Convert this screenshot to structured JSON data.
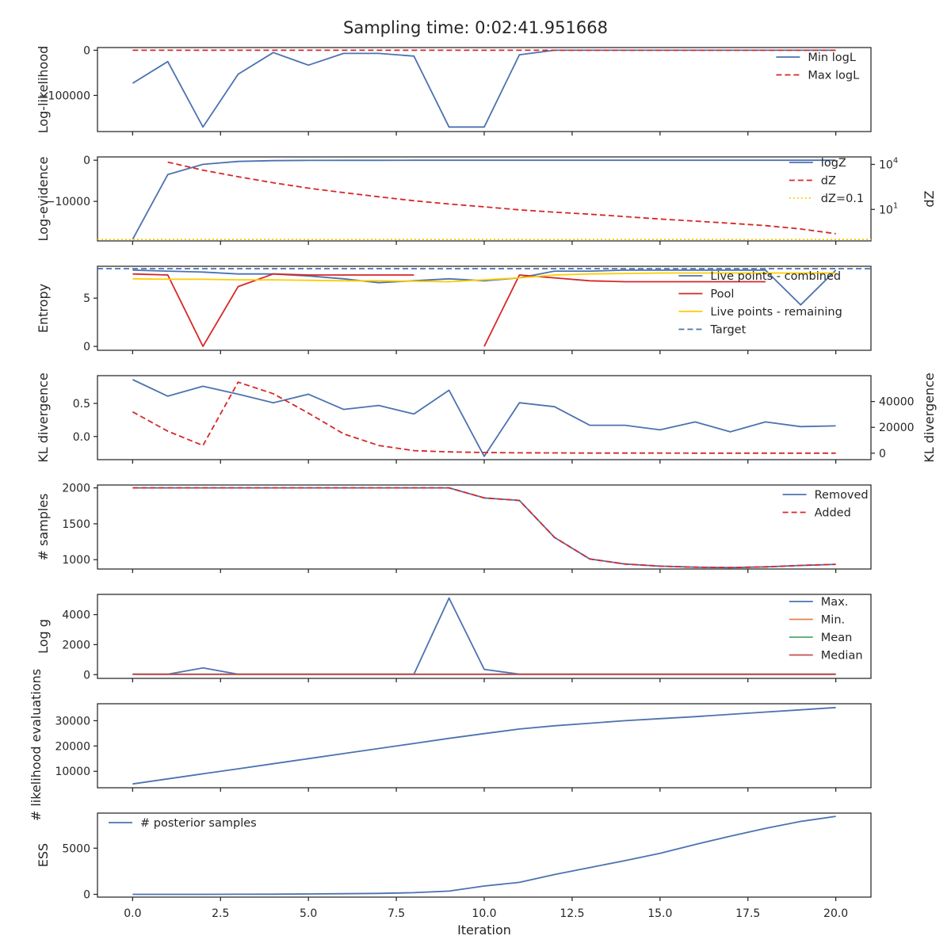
{
  "title": "Sampling time: 0:02:41.951668",
  "xlabel": "Iteration",
  "x_ticks": [
    "0.0",
    "2.5",
    "5.0",
    "7.5",
    "10.0",
    "12.5",
    "15.0",
    "17.5",
    "20.0"
  ],
  "colors": {
    "blue": "#4c72b0",
    "red": "#d62728",
    "orange": "#dd8452",
    "green": "#55a868",
    "crimson": "#c44e52",
    "gold": "#ffcc00",
    "axis": "#262626"
  },
  "chart_data": [
    {
      "type": "line",
      "ylabel": "Log-likelihood",
      "xlim": [
        -1,
        21
      ],
      "ylim": [
        -180000,
        6000
      ],
      "yticks": [
        {
          "v": 0,
          "label": "0"
        },
        {
          "v": -100000,
          "label": "−100000"
        }
      ],
      "legend_position": "right",
      "series": [
        {
          "name": "Min logL",
          "color": "blue",
          "dash": "solid",
          "x": [
            0,
            1,
            2,
            3,
            4,
            5,
            6,
            7,
            8,
            9,
            10,
            11,
            12,
            13,
            14,
            15,
            16,
            17,
            18,
            19,
            20
          ],
          "y": [
            -73000,
            -25000,
            -170000,
            -53000,
            -5000,
            -33000,
            -7000,
            -7000,
            -13000,
            -170000,
            -170000,
            -10000,
            0,
            0,
            0,
            0,
            0,
            0,
            0,
            0,
            0
          ]
        },
        {
          "name": "Max logL",
          "color": "red",
          "dash": "dashed",
          "x": [
            0,
            20
          ],
          "y": [
            0,
            0
          ]
        }
      ]
    },
    {
      "type": "line",
      "ylabel": "Log-evidence",
      "ylabel2": "dZ",
      "xlim": [
        -1,
        21
      ],
      "ylim": [
        -19600,
        800
      ],
      "yticks": [
        {
          "v": 0,
          "label": "0"
        },
        {
          "v": -10000,
          "label": "−10000"
        }
      ],
      "y2_log": true,
      "y2lim": [
        -1.1,
        4.5
      ],
      "y2ticks": [
        {
          "v": 4,
          "base": "10",
          "exp": "4"
        },
        {
          "v": 1,
          "base": "10",
          "exp": "1"
        }
      ],
      "legend_position": "right",
      "series": [
        {
          "name": "logZ",
          "color": "blue",
          "dash": "solid",
          "x": [
            0,
            1,
            2,
            3,
            4,
            5,
            6,
            7,
            8,
            9,
            10,
            11,
            12,
            13,
            14,
            15,
            16,
            17,
            18,
            19,
            20
          ],
          "y": [
            -19200,
            -3500,
            -1000,
            -300,
            -100,
            -50,
            -30,
            -20,
            -10,
            -5,
            -3,
            -2,
            -1,
            -1,
            -1,
            -1,
            -1,
            -1,
            -1,
            -1,
            -1
          ]
        },
        {
          "name": "dZ",
          "color": "red",
          "dash": "dashed",
          "axis": "right",
          "x": [
            1,
            2,
            3,
            4,
            5,
            6,
            7,
            8,
            9,
            10,
            11,
            12,
            13,
            14,
            15,
            16,
            17,
            18,
            19,
            20
          ],
          "y": [
            4.15,
            3.62,
            3.18,
            2.78,
            2.42,
            2.12,
            1.84,
            1.58,
            1.36,
            1.17,
            0.97,
            0.82,
            0.68,
            0.52,
            0.36,
            0.22,
            0.08,
            -0.08,
            -0.3,
            -0.62
          ]
        },
        {
          "name": "dZ=0.1",
          "color": "gold",
          "dash": "dotted",
          "axis": "right",
          "x": [
            -1,
            21
          ],
          "y": [
            -1,
            -1
          ]
        }
      ]
    },
    {
      "type": "line",
      "ylabel": "Entropy",
      "xlim": [
        -1,
        21
      ],
      "ylim": [
        -0.4,
        8.3
      ],
      "yticks": [
        {
          "v": 5,
          "label": "5"
        },
        {
          "v": 0,
          "label": "0"
        }
      ],
      "legend_position": "lower right",
      "series": [
        {
          "name": "Live points - combined",
          "color": "blue",
          "dash": "solid",
          "x": [
            0,
            1,
            2,
            3,
            4,
            5,
            6,
            7,
            8,
            9,
            10,
            11,
            12,
            13,
            14,
            15,
            16,
            17,
            18,
            19,
            20
          ],
          "y": [
            7.9,
            7.8,
            7.7,
            7.5,
            7.5,
            7.3,
            7.0,
            6.6,
            6.8,
            7.0,
            6.8,
            7.1,
            7.8,
            7.8,
            7.9,
            7.9,
            7.9,
            7.9,
            7.9,
            4.3,
            7.9
          ]
        },
        {
          "name": "Pool",
          "color": "red",
          "dash": "solid",
          "segments": [
            {
              "x": [
                0,
                1,
                2,
                3,
                4,
                5,
                6,
                7,
                8
              ],
              "y": [
                7.5,
                7.4,
                0,
                6.2,
                7.5,
                7.4,
                7.4,
                7.4,
                7.4
              ]
            },
            {
              "x": [
                10,
                11,
                12,
                13,
                14,
                15,
                16,
                17,
                18
              ],
              "y": [
                0,
                7.4,
                7.1,
                6.8,
                6.7,
                6.7,
                6.7,
                6.7,
                6.7
              ]
            }
          ]
        },
        {
          "name": "Live points - remaining",
          "color": "gold",
          "dash": "solid",
          "x": [
            0,
            1,
            2,
            3,
            4,
            5,
            6,
            7,
            8,
            9,
            10,
            11,
            12,
            13,
            14,
            15,
            16,
            17,
            18,
            19,
            20
          ],
          "y": [
            7.0,
            6.95,
            6.95,
            6.9,
            6.9,
            6.85,
            6.8,
            6.8,
            6.75,
            6.7,
            6.9,
            7.1,
            7.4,
            7.5,
            7.55,
            7.6,
            7.6,
            7.6,
            7.6,
            7.6,
            7.6
          ]
        },
        {
          "name": "Target",
          "color": "blue",
          "dash": "dashed",
          "x": [
            -1,
            21
          ],
          "y": [
            8.05,
            8.05
          ]
        }
      ]
    },
    {
      "type": "line",
      "ylabel": "KL divergence",
      "ylabel2": "KL divergence",
      "xlim": [
        -1,
        21
      ],
      "ylim": [
        -0.35,
        0.92
      ],
      "yticks": [
        {
          "v": 0.5,
          "label": "0.5"
        },
        {
          "v": 0,
          "label": "0.0"
        }
      ],
      "y2lim": [
        -5000,
        60000
      ],
      "y2ticks": [
        {
          "v": 40000,
          "label": "40000"
        },
        {
          "v": 20000,
          "label": "20000"
        },
        {
          "v": 0,
          "label": "0"
        }
      ],
      "series": [
        {
          "color": "blue",
          "dash": "solid",
          "x": [
            0,
            1,
            2,
            3,
            4,
            5,
            6,
            7,
            8,
            9,
            10,
            11,
            12,
            13,
            14,
            15,
            16,
            17,
            18,
            19,
            20
          ],
          "y": [
            0.86,
            0.61,
            0.76,
            0.64,
            0.51,
            0.64,
            0.41,
            0.47,
            0.34,
            0.7,
            -0.3,
            0.51,
            0.45,
            0.17,
            0.17,
            0.1,
            0.22,
            0.07,
            0.22,
            0.15,
            0.16
          ]
        },
        {
          "color": "red",
          "dash": "dashed",
          "axis": "right",
          "x": [
            0,
            1,
            2,
            3,
            4,
            5,
            6,
            7,
            8,
            9,
            10,
            11,
            12,
            13,
            14,
            15,
            16,
            17,
            18,
            19,
            20
          ],
          "y": [
            32000,
            17000,
            6000,
            55000,
            46000,
            31000,
            15000,
            6000,
            2000,
            1000,
            500,
            300,
            200,
            100,
            100,
            100,
            50,
            50,
            50,
            50,
            50
          ]
        }
      ]
    },
    {
      "type": "line",
      "ylabel": "# samples",
      "xlim": [
        -1,
        21
      ],
      "ylim": [
        870,
        2040
      ],
      "yticks": [
        {
          "v": 2000,
          "label": "2000"
        },
        {
          "v": 1500,
          "label": "1500"
        },
        {
          "v": 1000,
          "label": "1000"
        }
      ],
      "legend_position": "upper right",
      "series": [
        {
          "name": "Removed",
          "color": "blue",
          "dash": "solid",
          "x": [
            0,
            1,
            2,
            3,
            4,
            5,
            6,
            7,
            8,
            9,
            10,
            11,
            12,
            13,
            14,
            15,
            16,
            17,
            18,
            19,
            20
          ],
          "y": [
            2000,
            2000,
            2000,
            2000,
            2000,
            2000,
            2000,
            2000,
            2000,
            2000,
            1860,
            1825,
            1310,
            1010,
            940,
            910,
            895,
            890,
            900,
            920,
            935
          ]
        },
        {
          "name": "Added",
          "color": "red",
          "dash": "dashed",
          "x": [
            0,
            1,
            2,
            3,
            4,
            5,
            6,
            7,
            8,
            9,
            10,
            11,
            12,
            13,
            14,
            15,
            16,
            17,
            18,
            19,
            20
          ],
          "y": [
            2000,
            2000,
            2000,
            2000,
            2000,
            2000,
            2000,
            2000,
            2000,
            2000,
            1860,
            1825,
            1310,
            1010,
            940,
            910,
            895,
            890,
            900,
            920,
            935
          ]
        }
      ]
    },
    {
      "type": "line",
      "ylabel": "Log g",
      "xlim": [
        -1,
        21
      ],
      "ylim": [
        -250,
        5350
      ],
      "yticks": [
        {
          "v": 4000,
          "label": "4000"
        },
        {
          "v": 2000,
          "label": "2000"
        },
        {
          "v": 0,
          "label": "0"
        }
      ],
      "legend_position": "upper right",
      "series": [
        {
          "name": "Max.",
          "color": "blue",
          "dash": "solid",
          "x": [
            0,
            1,
            2,
            3,
            4,
            5,
            6,
            7,
            8,
            9,
            10,
            11,
            12,
            13,
            14,
            15,
            16,
            17,
            18,
            19,
            20
          ],
          "y": [
            30,
            30,
            450,
            30,
            30,
            30,
            30,
            30,
            30,
            5100,
            350,
            30,
            30,
            30,
            30,
            30,
            30,
            30,
            30,
            30,
            30
          ]
        },
        {
          "name": "Min.",
          "color": "orange",
          "dash": "solid",
          "x": [
            0,
            20
          ],
          "y": [
            20,
            20
          ]
        },
        {
          "name": "Mean",
          "color": "green",
          "dash": "solid",
          "x": [
            0,
            20
          ],
          "y": [
            25,
            25
          ]
        },
        {
          "name": "Median",
          "color": "crimson",
          "dash": "solid",
          "x": [
            0,
            20
          ],
          "y": [
            25,
            25
          ]
        }
      ]
    },
    {
      "type": "line",
      "ylabel": "# likelihood evaluations",
      "xlim": [
        -1,
        21
      ],
      "ylim": [
        3500,
        36700
      ],
      "yticks": [
        {
          "v": 30000,
          "label": "30000"
        },
        {
          "v": 20000,
          "label": "20000"
        },
        {
          "v": 10000,
          "label": "10000"
        }
      ],
      "series": [
        {
          "color": "blue",
          "dash": "solid",
          "x": [
            0,
            1,
            2,
            3,
            4,
            5,
            6,
            7,
            8,
            9,
            10,
            11,
            12,
            13,
            14,
            15,
            16,
            17,
            18,
            19,
            20
          ],
          "y": [
            5000,
            7000,
            9000,
            11000,
            13000,
            15000,
            17000,
            19000,
            21000,
            23000,
            24900,
            26700,
            28000,
            29000,
            30000,
            30800,
            31600,
            32500,
            33400,
            34300,
            35200
          ]
        }
      ]
    },
    {
      "type": "line",
      "ylabel": "ESS",
      "xlim": [
        -1,
        21
      ],
      "ylim": [
        -300,
        8800
      ],
      "yticks": [
        {
          "v": 5000,
          "label": "5000"
        },
        {
          "v": 0,
          "label": "0"
        }
      ],
      "legend_position": "upper left",
      "series": [
        {
          "name": "# posterior samples",
          "color": "blue",
          "dash": "solid",
          "x": [
            0,
            1,
            2,
            3,
            4,
            5,
            6,
            7,
            8,
            9,
            10,
            11,
            12,
            13,
            14,
            15,
            16,
            17,
            18,
            19,
            20
          ],
          "y": [
            0,
            0,
            0,
            5,
            15,
            40,
            70,
            100,
            180,
            350,
            900,
            1300,
            2150,
            2900,
            3650,
            4450,
            5400,
            6300,
            7150,
            7900,
            8450
          ]
        }
      ]
    }
  ]
}
